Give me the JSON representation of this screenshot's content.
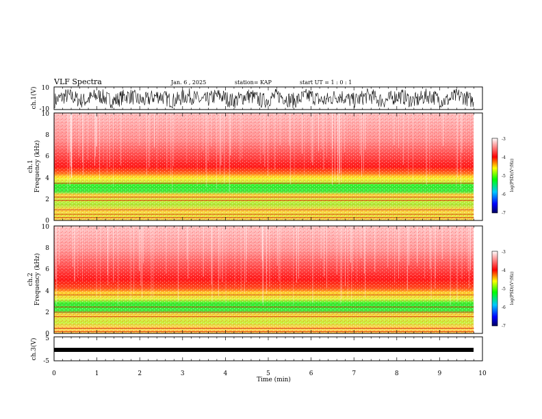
{
  "header": {
    "title": "VLF Spectra",
    "date": "Jan. 6 , 2025",
    "station": "station= KAP",
    "start_ut": "start  UT =   1 : 0  : 1"
  },
  "chart_data": [
    {
      "type": "line",
      "panel": "ch1-waveform",
      "ylabel": "ch.1(V)",
      "ylim": [
        -10,
        10
      ],
      "yticks": [
        "10",
        "-10"
      ],
      "xlim": [
        0,
        10
      ],
      "description_color": "#000000"
    },
    {
      "type": "heatmap",
      "panel": "ch1-spectrogram",
      "ylabel_lines": [
        "ch.1",
        "Frequency (kHz)"
      ],
      "ylim": [
        0,
        10
      ],
      "yticks": [
        "0",
        "2",
        "4",
        "6",
        "8",
        "10"
      ],
      "xlim": [
        0,
        10
      ],
      "colorbar": {
        "label": "log(PSD)(V²/Hz)",
        "ticks": [
          "-3",
          "-4",
          "-5",
          "-6",
          "-7"
        ],
        "range": [
          -7,
          -3
        ]
      },
      "bands_kHz": {
        "white_red_above": 5.0,
        "red_band": [
          4.0,
          5.0
        ],
        "yellow_band": [
          3.6,
          4.0
        ],
        "green_band": [
          2.4,
          3.6
        ],
        "line_at": [
          2.2,
          1.0
        ]
      }
    },
    {
      "type": "heatmap",
      "panel": "ch2-spectrogram",
      "ylabel_lines": [
        "ch.2",
        "Frequency (kHz)"
      ],
      "ylim": [
        0,
        10
      ],
      "yticks": [
        "0",
        "2",
        "4",
        "6",
        "8",
        "10"
      ],
      "xlim": [
        0,
        10
      ],
      "colorbar": {
        "label": "log(PSD)(V²/Hz)",
        "ticks": [
          "-3",
          "-4",
          "-5",
          "-6",
          "-7"
        ],
        "range": [
          -7,
          -3
        ]
      }
    },
    {
      "type": "line",
      "panel": "ch3-waveform",
      "ylabel": "ch.3(V)",
      "ylim": [
        -5,
        5
      ],
      "yticks": [
        "5",
        "-5"
      ],
      "xlim": [
        0,
        10
      ],
      "xlabel": "Time (min)",
      "xticks": [
        "0",
        "1",
        "2",
        "3",
        "4",
        "5",
        "6",
        "7",
        "8",
        "9",
        "10"
      ]
    }
  ],
  "colors": {
    "colormap": [
      "#000080",
      "#0000ff",
      "#00c8ff",
      "#00ff00",
      "#ffff00",
      "#ff0000",
      "#ffffff"
    ]
  }
}
